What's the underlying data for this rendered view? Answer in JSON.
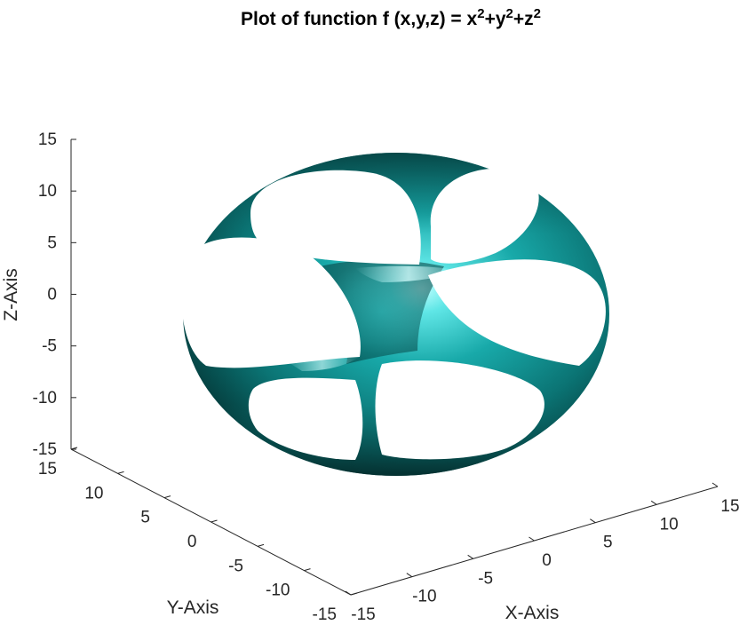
{
  "chart_data": {
    "type": "surface3d",
    "title": "Plot of function f (x,y,z) = x²+y²+z²",
    "title_parts": {
      "prefix": "Plot of function f (x,y,z) = x",
      "exp1": "2",
      "mid1": "+y",
      "exp2": "2",
      "mid2": "+z",
      "exp3": "2"
    },
    "xlabel": "X-Axis",
    "ylabel": "Y-Axis",
    "zlabel": "Z-Axis",
    "xlim": [
      -15,
      15
    ],
    "ylim": [
      -15,
      15
    ],
    "zlim": [
      -15,
      15
    ],
    "x_ticks": [
      "-15",
      "-10",
      "-5",
      "0",
      "5",
      "10",
      "15"
    ],
    "y_ticks": [
      "-15",
      "-10",
      "-5",
      "0",
      "5",
      "10",
      "15"
    ],
    "z_ticks": [
      "15",
      "10",
      "5",
      "0",
      "-5",
      "-10",
      "-15"
    ],
    "surface": {
      "shape": "sphere with six circular holes",
      "radius": 12,
      "holes": 6,
      "color": "#1aa7a7",
      "shadow_color": "#003c3c",
      "highlight_color": "#b8ffff"
    },
    "grid": false,
    "legend": "none"
  }
}
